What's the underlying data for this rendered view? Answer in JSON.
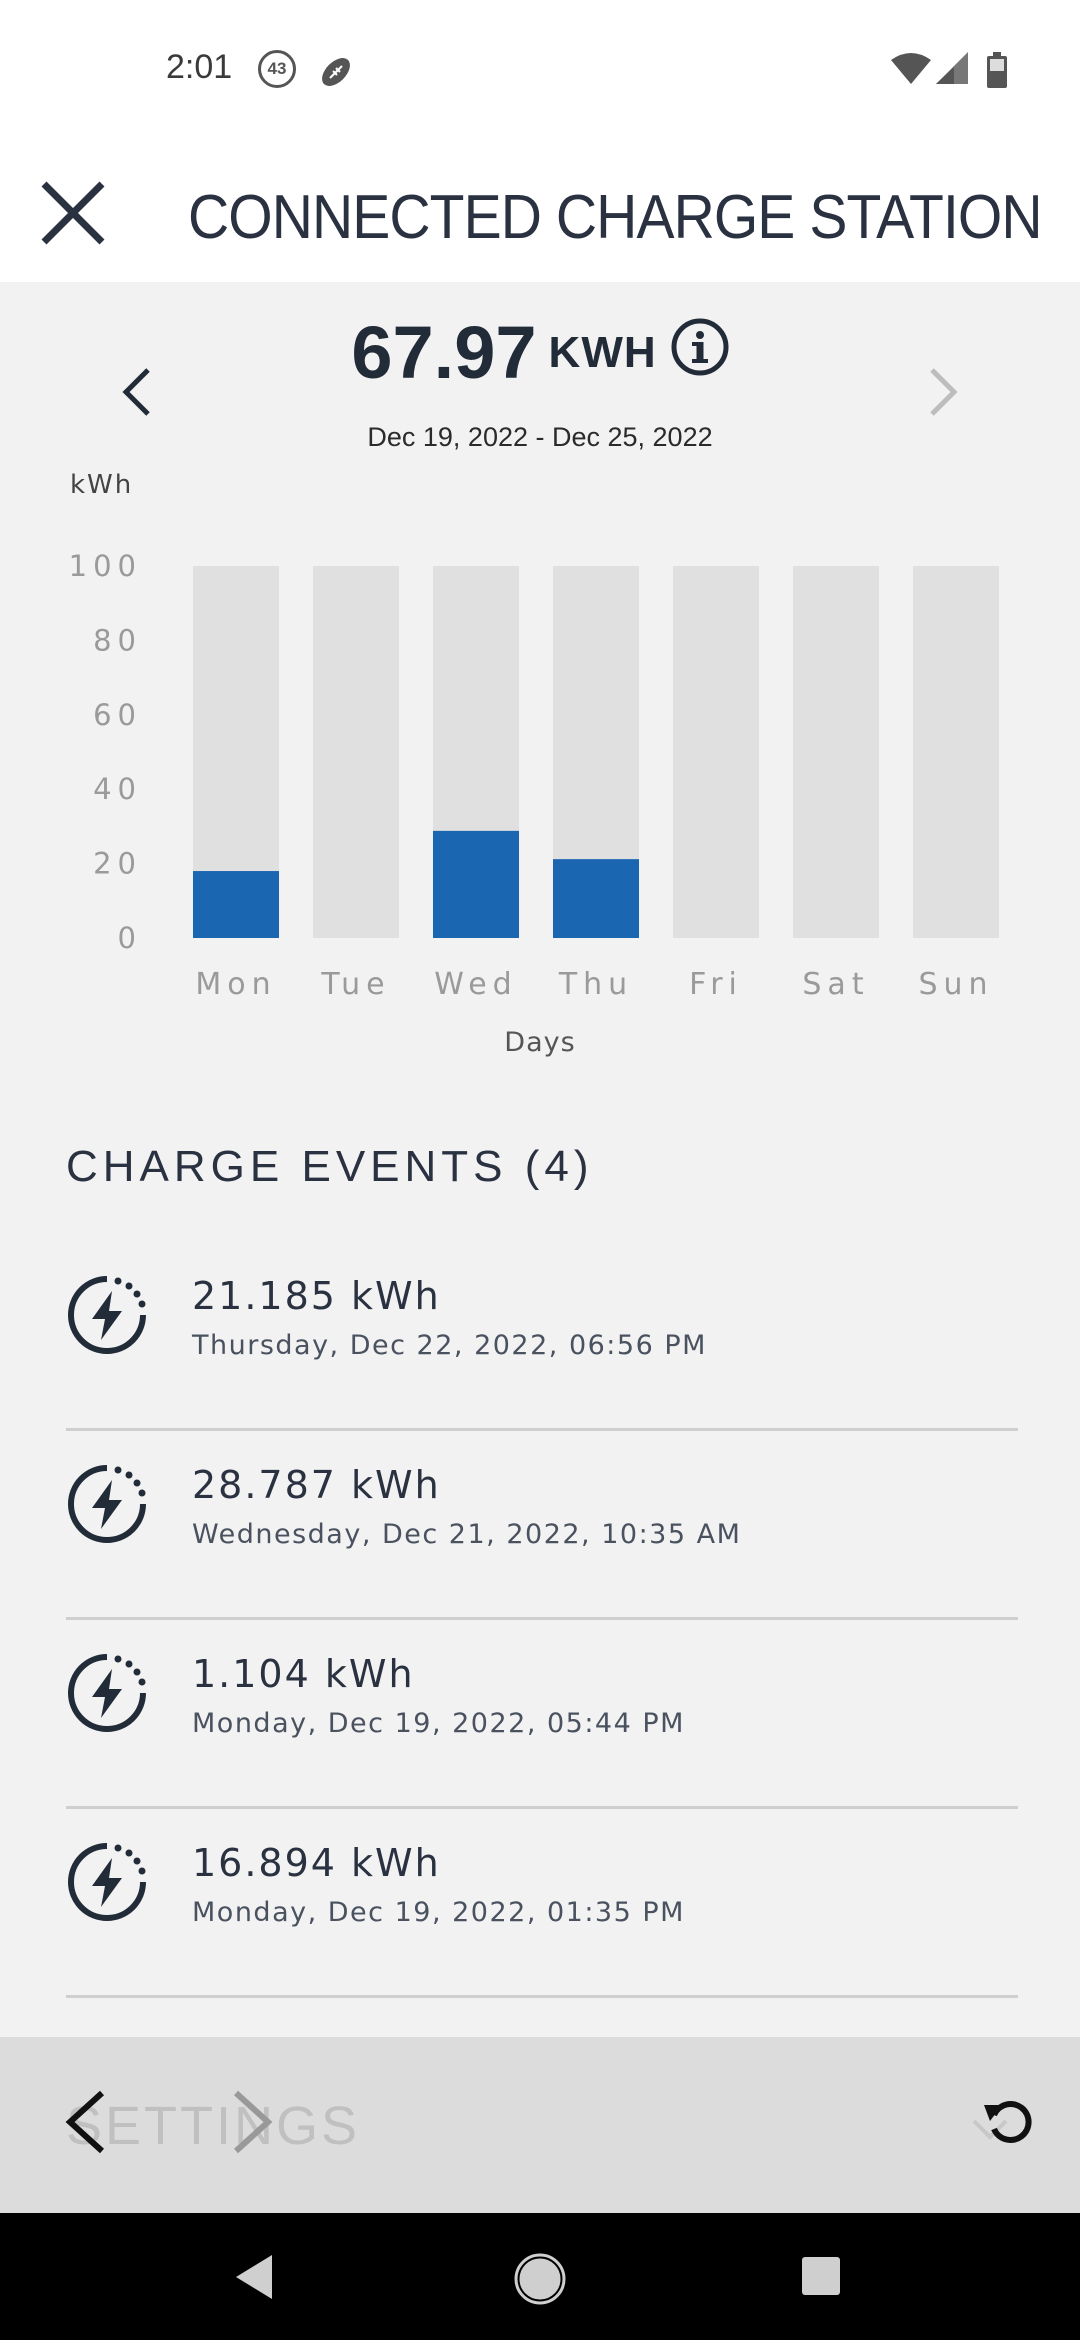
{
  "status_bar": {
    "time": "2:01",
    "notification_badge": "43",
    "icons": [
      "football-icon",
      "wifi-icon",
      "signal-icon",
      "battery-icon"
    ]
  },
  "header": {
    "title": "CONNECTED CHARGE STATION",
    "close_icon": "close-icon"
  },
  "summary": {
    "total_value": "67.97",
    "total_unit": "KWH",
    "date_range": "Dec 19, 2022 - Dec 25, 2022"
  },
  "colors": {
    "bar_fill": "#1b66b1",
    "bar_track": "#e0e0e0",
    "background": "#f2f2f2",
    "text": "#222b38"
  },
  "chart_data": {
    "type": "bar",
    "ylabel": "kWh",
    "xlabel": "Days",
    "categories": [
      "Mon",
      "Tue",
      "Wed",
      "Thu",
      "Fri",
      "Sat",
      "Sun"
    ],
    "values": [
      18,
      0,
      28.8,
      21.2,
      0,
      0,
      0
    ],
    "ylim": [
      0,
      100
    ],
    "yticks": [
      "100",
      "80",
      "60",
      "40",
      "20",
      "0"
    ],
    "grid": false
  },
  "events_section": {
    "title": "CHARGE EVENTS (4)",
    "events": [
      {
        "kwh": "21.185 kWh",
        "date": "Thursday, Dec 22, 2022, 06:56 PM"
      },
      {
        "kwh": "28.787 kWh",
        "date": "Wednesday, Dec 21, 2022, 10:35 AM"
      },
      {
        "kwh": "1.104 kWh",
        "date": "Monday, Dec 19, 2022, 05:44 PM"
      },
      {
        "kwh": "16.894 kWh",
        "date": "Monday, Dec 19, 2022, 01:35 PM"
      }
    ]
  },
  "toolbar": {
    "obscured_label": "SETTINGS"
  }
}
